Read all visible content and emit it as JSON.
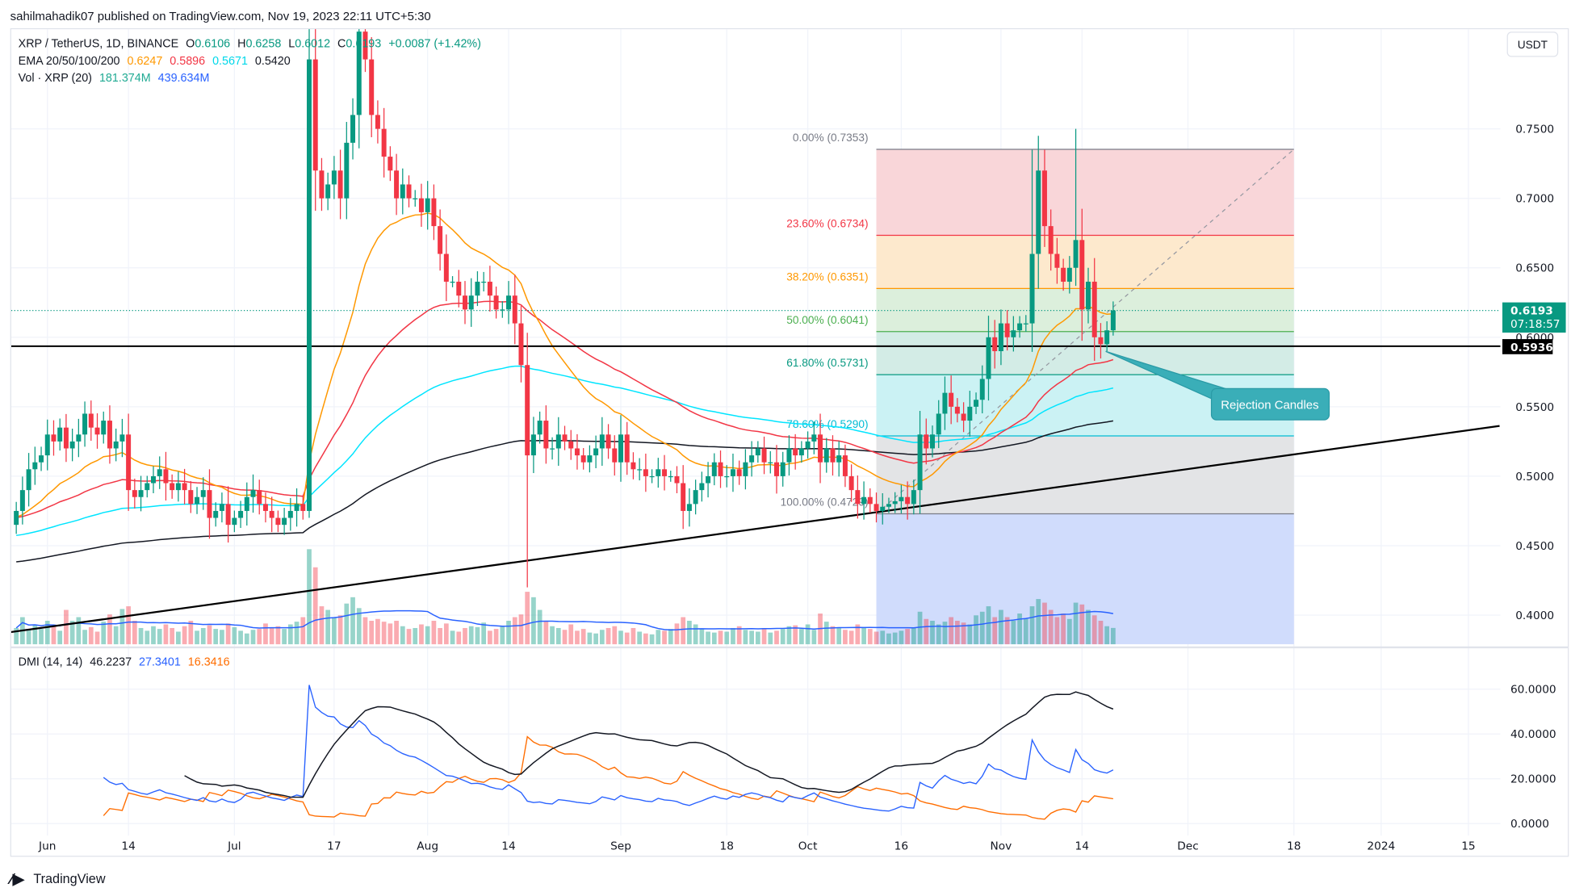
{
  "publisher_line": "sahilmahadik07 published on TradingView.com, Nov 19, 2023 22:11 UTC+5:30",
  "brand": "TradingView",
  "currency_button": "USDT",
  "legend": {
    "symbol": "XRP / TetherUS, 1D, BINANCE",
    "o_label": "O",
    "o": "0.6106",
    "h_label": "H",
    "h": "0.6258",
    "l_label": "L",
    "l": "0.6012",
    "c_label": "C",
    "c": "0.6193",
    "change": "+0.0087 (+1.42%)",
    "ema_label": "EMA 20/50/100/200",
    "ema20": "0.6247",
    "ema50": "0.5896",
    "ema100": "0.5671",
    "ema200": "0.5420",
    "vol_label": "Vol · XRP (20)",
    "vol": "181.374M",
    "vol_ma": "439.634M",
    "dmi_label": "DMI (14, 14)",
    "adx": "46.2237",
    "plus_di": "27.3401",
    "minus_di": "16.3416"
  },
  "price_labels": {
    "last": "0.6193",
    "countdown": "07:18:57",
    "support": "0.5936"
  },
  "annotation": "Rejection Candles",
  "colors": {
    "up": "#089981",
    "down": "#f23645",
    "ema20": "#ff9800",
    "ema50": "#f23645",
    "ema100": "#00e5ff",
    "ema200": "#131722",
    "vol_ma": "#2962ff",
    "adx": "#131722",
    "plus_di": "#2962ff",
    "minus_di": "#ff6d00"
  },
  "chart_data": {
    "type": "candlestick",
    "title": "XRP / TetherUS, 1D, BINANCE",
    "start_date": "2023-05-27",
    "end_date": "2023-11-19",
    "ylim": [
      0.38,
      0.82
    ],
    "y_ticks": [
      "0.4000",
      "0.4500",
      "0.5000",
      "0.5500",
      "0.6000",
      "0.6500",
      "0.7000",
      "0.7500"
    ],
    "dmi_ticks": [
      "0.0000",
      "20.0000",
      "40.0000",
      "60.0000"
    ],
    "x_ticks": [
      {
        "label": "Jun",
        "day": 5
      },
      {
        "label": "14",
        "day": 18
      },
      {
        "label": "Jul",
        "day": 35
      },
      {
        "label": "17",
        "day": 51
      },
      {
        "label": "Aug",
        "day": 66
      },
      {
        "label": "14",
        "day": 79
      },
      {
        "label": "Sep",
        "day": 97
      },
      {
        "label": "18",
        "day": 114
      },
      {
        "label": "Oct",
        "day": 127
      },
      {
        "label": "16",
        "day": 142
      },
      {
        "label": "Nov",
        "day": 158
      },
      {
        "label": "14",
        "day": 171
      },
      {
        "label": "Dec",
        "day": 188
      },
      {
        "label": "18",
        "day": 205
      },
      {
        "label": "2024",
        "day": 219
      },
      {
        "label": "15",
        "day": 233
      }
    ],
    "first_open": 0.465,
    "closes": [
      0.475,
      0.49,
      0.505,
      0.51,
      0.515,
      0.53,
      0.525,
      0.535,
      0.52,
      0.525,
      0.53,
      0.545,
      0.535,
      0.53,
      0.54,
      0.52,
      0.525,
      0.53,
      0.49,
      0.485,
      0.49,
      0.495,
      0.5,
      0.505,
      0.495,
      0.49,
      0.495,
      0.49,
      0.48,
      0.485,
      0.49,
      0.47,
      0.475,
      0.48,
      0.465,
      0.47,
      0.475,
      0.485,
      0.49,
      0.48,
      0.475,
      0.47,
      0.465,
      0.47,
      0.475,
      0.48,
      0.475,
      0.8,
      0.72,
      0.7,
      0.71,
      0.72,
      0.7,
      0.74,
      0.76,
      0.82,
      0.8,
      0.76,
      0.75,
      0.73,
      0.72,
      0.7,
      0.71,
      0.7,
      0.7,
      0.69,
      0.7,
      0.68,
      0.66,
      0.64,
      0.64,
      0.63,
      0.62,
      0.63,
      0.64,
      0.64,
      0.63,
      0.62,
      0.62,
      0.63,
      0.61,
      0.58,
      0.515,
      0.53,
      0.54,
      0.52,
      0.52,
      0.53,
      0.525,
      0.52,
      0.515,
      0.51,
      0.515,
      0.52,
      0.53,
      0.52,
      0.51,
      0.53,
      0.51,
      0.505,
      0.505,
      0.5,
      0.5,
      0.505,
      0.5,
      0.5,
      0.495,
      0.475,
      0.48,
      0.49,
      0.495,
      0.5,
      0.51,
      0.5,
      0.5,
      0.505,
      0.5,
      0.51,
      0.515,
      0.52,
      0.51,
      0.51,
      0.5,
      0.51,
      0.52,
      0.515,
      0.52,
      0.525,
      0.53,
      0.51,
      0.52,
      0.51,
      0.515,
      0.5,
      0.49,
      0.48,
      0.485,
      0.48,
      0.475,
      0.478,
      0.48,
      0.482,
      0.485,
      0.48,
      0.49,
      0.53,
      0.52,
      0.53,
      0.545,
      0.56,
      0.55,
      0.545,
      0.54,
      0.55,
      0.555,
      0.57,
      0.6,
      0.59,
      0.61,
      0.6,
      0.605,
      0.61,
      0.61,
      0.66,
      0.72,
      0.68,
      0.66,
      0.65,
      0.64,
      0.65,
      0.67,
      0.62,
      0.64,
      0.6,
      0.595,
      0.605,
      0.6193
    ],
    "wick_overrides": [
      {
        "day": 47,
        "high": 0.93,
        "low": 0.47
      },
      {
        "day": 82,
        "low": 0.42
      },
      {
        "day": 163,
        "high": 0.735
      },
      {
        "day": 170,
        "high": 0.75
      },
      {
        "day": 175,
        "low": 0.59
      },
      {
        "day": 176,
        "high": 0.6258,
        "low": 0.6012
      }
    ],
    "volumes_m": [
      180,
      300,
      160,
      220,
      170,
      260,
      200,
      150,
      380,
      260,
      300,
      160,
      190,
      140,
      250,
      330,
      200,
      390,
      420,
      260,
      180,
      150,
      200,
      170,
      220,
      180,
      140,
      200,
      260,
      150,
      180,
      210,
      170,
      160,
      230,
      190,
      150,
      120,
      160,
      170,
      230,
      180,
      200,
      170,
      220,
      250,
      300,
      1050,
      850,
      420,
      380,
      300,
      320,
      450,
      520,
      400,
      300,
      260,
      280,
      250,
      230,
      260,
      200,
      170,
      180,
      220,
      200,
      260,
      180,
      230,
      150,
      140,
      180,
      200,
      190,
      240,
      150,
      170,
      200,
      260,
      300,
      330,
      580,
      520,
      380,
      260,
      200,
      180,
      160,
      220,
      150,
      170,
      130,
      120,
      160,
      180,
      200,
      150,
      130,
      180,
      140,
      120,
      110,
      160,
      150,
      170,
      230,
      300,
      260,
      220,
      170,
      140,
      130,
      150,
      140,
      180,
      200,
      160,
      150,
      140,
      180,
      130,
      150,
      170,
      200,
      210,
      170,
      220,
      160,
      340,
      250,
      200,
      180,
      160,
      150,
      220,
      180,
      170,
      140,
      150,
      120,
      130,
      150,
      170,
      180,
      360,
      280,
      260,
      220,
      250,
      300,
      260,
      240,
      220,
      320,
      360,
      420,
      300,
      380,
      300,
      260,
      340,
      280,
      420,
      500,
      460,
      380,
      300,
      340,
      280,
      460,
      440,
      380,
      320,
      260,
      200,
      181
    ],
    "ema_init": {
      "ema20": 0.47,
      "ema50": 0.47,
      "ema100": 0.457,
      "ema200": 0.438
    },
    "fibonacci": {
      "start_day": 138,
      "end_day": 205,
      "levels": [
        {
          "label": "0.00% (0.7353)",
          "price": 0.7353,
          "color": "#787b86",
          "fill": "#f9d6d9"
        },
        {
          "label": "23.60% (0.6734)",
          "price": 0.6734,
          "color": "#f23645",
          "fill": "#fde9cd"
        },
        {
          "label": "38.20% (0.6351)",
          "price": 0.6351,
          "color": "#ff9800",
          "fill": "#dcefdc"
        },
        {
          "label": "50.00% (0.6041)",
          "price": 0.6041,
          "color": "#4caf50",
          "fill": "#d3ece6"
        },
        {
          "label": "61.80% (0.5731)",
          "price": 0.5731,
          "color": "#089981",
          "fill": "#cbf2f4"
        },
        {
          "label": "78.60% (0.5290)",
          "price": 0.529,
          "color": "#00bcd4",
          "fill": "#e3e4e6"
        },
        {
          "label": "100.00% (0.4729)",
          "price": 0.4729,
          "color": "#787b86",
          "fill": "#d0dcfc"
        }
      ]
    },
    "support_line": 0.5936,
    "trendline": {
      "from": {
        "day": -1,
        "price": 0.3877
      },
      "to": {
        "day": 238,
        "price": 0.5362
      }
    }
  }
}
